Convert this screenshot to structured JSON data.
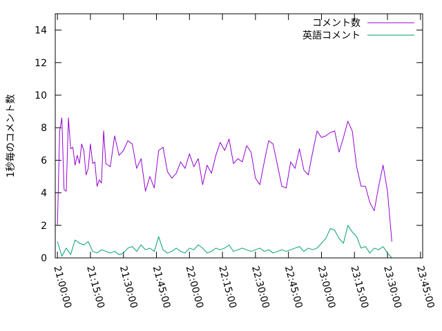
{
  "chart_data": {
    "type": "line",
    "title": "",
    "xlabel": "",
    "ylabel": "1秒毎のコメント数",
    "ylim": [
      0,
      15
    ],
    "xlim": [
      "20:59:00",
      "23:46:00"
    ],
    "grid": false,
    "legend_position": "top-right",
    "yticks": [
      "0",
      "2",
      "4",
      "6",
      "8",
      "10",
      "12",
      "14"
    ],
    "xticks": [
      "21:00:00",
      "21:15:00",
      "21:30:00",
      "21:45:00",
      "22:00:00",
      "22:15:00",
      "22:30:00",
      "22:45:00",
      "23:00:00",
      "23:15:00",
      "23:30:00",
      "23:45:00"
    ],
    "series": [
      {
        "name": "コメント数",
        "color": "#9400d3",
        "x": [
          "21:00:00",
          "21:01:00",
          "21:02:00",
          "21:03:00",
          "21:04:00",
          "21:05:00",
          "21:06:00",
          "21:07:00",
          "21:08:00",
          "21:09:00",
          "21:10:00",
          "21:11:00",
          "21:12:00",
          "21:13:00",
          "21:14:00",
          "21:15:00",
          "21:16:00",
          "21:17:00",
          "21:18:00",
          "21:19:00",
          "21:20:00",
          "21:21:00",
          "21:22:00",
          "21:24:00",
          "21:26:00",
          "21:28:00",
          "21:30:00",
          "21:32:00",
          "21:34:00",
          "21:36:00",
          "21:38:00",
          "21:40:00",
          "21:42:00",
          "21:44:00",
          "21:46:00",
          "21:48:00",
          "21:50:00",
          "21:52:00",
          "21:54:00",
          "21:56:00",
          "21:58:00",
          "22:00:00",
          "22:02:00",
          "22:04:00",
          "22:06:00",
          "22:08:00",
          "22:10:00",
          "22:12:00",
          "22:14:00",
          "22:16:00",
          "22:18:00",
          "22:20:00",
          "22:22:00",
          "22:24:00",
          "22:26:00",
          "22:28:00",
          "22:30:00",
          "22:32:00",
          "22:34:00",
          "22:36:00",
          "22:38:00",
          "22:40:00",
          "22:42:00",
          "22:44:00",
          "22:46:00",
          "22:48:00",
          "22:50:00",
          "22:52:00",
          "22:54:00",
          "22:56:00",
          "22:58:00",
          "23:00:00",
          "23:02:00",
          "23:04:00",
          "23:06:00",
          "23:08:00",
          "23:10:00",
          "23:12:00",
          "23:14:00",
          "23:16:00",
          "23:18:00",
          "23:20:00",
          "23:22:00",
          "23:24:00",
          "23:26:00",
          "23:28:00",
          "23:30:00",
          "23:32:00",
          "23:34:00",
          "23:36:00",
          "23:38:00"
        ],
        "values": [
          2.0,
          7.8,
          8.6,
          4.2,
          4.1,
          8.6,
          6.7,
          6.8,
          5.7,
          6.3,
          5.8,
          7.0,
          6.6,
          5.1,
          5.5,
          7.0,
          5.8,
          5.9,
          4.4,
          4.8,
          4.6,
          7.8,
          5.8,
          5.6,
          7.5,
          6.3,
          6.6,
          7.2,
          7.0,
          5.5,
          6.1,
          4.1,
          5.0,
          4.3,
          6.6,
          6.8,
          5.3,
          4.9,
          5.2,
          5.9,
          5.5,
          6.4,
          5.6,
          6.1,
          4.5,
          5.7,
          5.2,
          6.3,
          7.1,
          6.6,
          7.3,
          5.8,
          6.1,
          5.9,
          6.9,
          6.5,
          4.9,
          4.5,
          5.9,
          7.2,
          7.0,
          5.7,
          4.4,
          4.3,
          5.9,
          5.5,
          6.7,
          5.4,
          5.1,
          6.5,
          7.8,
          7.4,
          7.5,
          7.7,
          7.8,
          6.5,
          7.4,
          8.4,
          7.8,
          5.6,
          4.4,
          4.4,
          3.4,
          2.9,
          4.4,
          5.7,
          4.1,
          1.0,
          null,
          null,
          null
        ],
        "values_note": ""
      },
      {
        "name": "英語コメント",
        "color": "#009e73",
        "x": [
          "21:00:00",
          "21:02:00",
          "21:04:00",
          "21:06:00",
          "21:08:00",
          "21:10:00",
          "21:12:00",
          "21:14:00",
          "21:16:00",
          "21:18:00",
          "21:20:00",
          "21:22:00",
          "21:24:00",
          "21:26:00",
          "21:28:00",
          "21:30:00",
          "21:32:00",
          "21:34:00",
          "21:36:00",
          "21:38:00",
          "21:40:00",
          "21:42:00",
          "21:44:00",
          "21:46:00",
          "21:48:00",
          "21:50:00",
          "21:52:00",
          "21:54:00",
          "21:56:00",
          "21:58:00",
          "22:00:00",
          "22:02:00",
          "22:04:00",
          "22:06:00",
          "22:08:00",
          "22:10:00",
          "22:12:00",
          "22:14:00",
          "22:16:00",
          "22:18:00",
          "22:20:00",
          "22:22:00",
          "22:24:00",
          "22:26:00",
          "22:28:00",
          "22:30:00",
          "22:32:00",
          "22:34:00",
          "22:36:00",
          "22:38:00",
          "22:40:00",
          "22:42:00",
          "22:44:00",
          "22:46:00",
          "22:48:00",
          "22:50:00",
          "22:52:00",
          "22:54:00",
          "22:56:00",
          "22:58:00",
          "23:00:00",
          "23:02:00",
          "23:04:00",
          "23:06:00",
          "23:08:00",
          "23:10:00",
          "23:12:00",
          "23:14:00",
          "23:16:00",
          "23:18:00",
          "23:20:00",
          "23:22:00",
          "23:24:00",
          "23:26:00",
          "23:28:00",
          "23:30:00",
          "23:32:00",
          "23:34:00",
          "23:36:00",
          "23:38:00"
        ],
        "values": [
          1.0,
          0.1,
          0.6,
          0.2,
          1.1,
          0.9,
          0.8,
          1.0,
          0.4,
          0.3,
          0.5,
          0.4,
          0.3,
          0.4,
          0.2,
          0.3,
          0.6,
          0.7,
          0.4,
          0.8,
          0.5,
          0.6,
          0.4,
          1.3,
          0.5,
          0.3,
          0.4,
          0.6,
          0.4,
          0.3,
          0.6,
          0.5,
          0.8,
          0.6,
          0.3,
          0.4,
          0.6,
          0.5,
          0.6,
          0.8,
          0.4,
          0.5,
          0.6,
          0.5,
          0.4,
          0.5,
          0.6,
          0.4,
          0.5,
          0.3,
          0.4,
          0.5,
          0.4,
          0.5,
          0.6,
          0.7,
          0.4,
          0.6,
          0.5,
          0.6,
          0.9,
          1.2,
          1.8,
          1.7,
          1.2,
          0.9,
          2.0,
          1.6,
          1.3,
          0.6,
          0.7,
          0.3,
          0.6,
          0.5,
          0.7,
          0.3,
          0.0,
          null,
          null,
          null
        ]
      }
    ]
  }
}
